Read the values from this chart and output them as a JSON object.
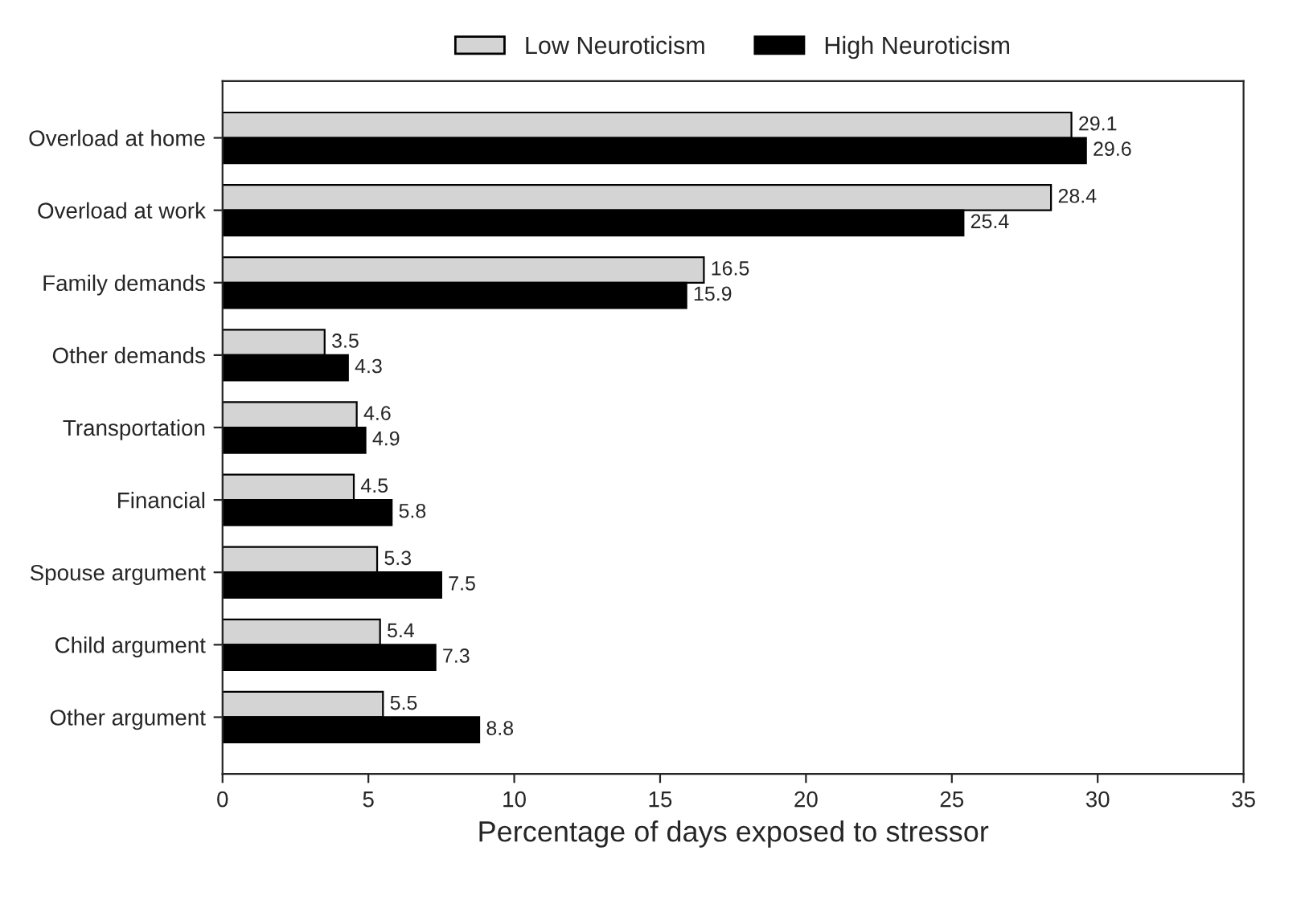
{
  "chart_data": {
    "type": "bar",
    "orientation": "horizontal",
    "xlabel": "Percentage of days exposed to stressor",
    "categories": [
      "Overload at home",
      "Overload at work",
      "Family demands",
      "Other demands",
      "Transportation",
      "Financial",
      "Spouse argument",
      "Child argument",
      "Other argument"
    ],
    "series": [
      {
        "name": "Low Neuroticism",
        "color": "#d4d4d4",
        "values": [
          29.1,
          28.4,
          16.5,
          3.5,
          4.6,
          4.5,
          5.3,
          5.4,
          5.5
        ]
      },
      {
        "name": "High Neuroticism",
        "color": "#000000",
        "values": [
          29.6,
          25.4,
          15.9,
          4.3,
          4.9,
          5.8,
          7.5,
          7.3,
          8.8
        ]
      }
    ],
    "xlim": [
      0,
      35
    ],
    "xticks": [
      0,
      5,
      10,
      15,
      20,
      25,
      30,
      35
    ],
    "data_labels": true,
    "legend": "top",
    "grid": false
  }
}
